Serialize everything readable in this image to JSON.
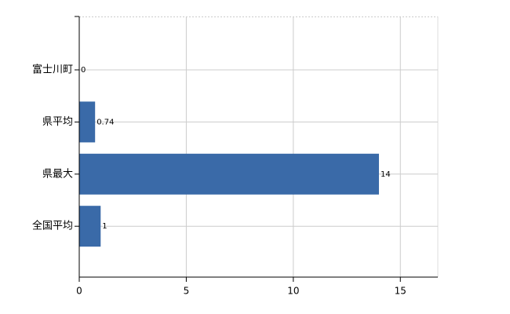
{
  "chart_data": {
    "type": "bar",
    "orientation": "horizontal",
    "categories": [
      "富士川町",
      "県平均",
      "県最大",
      "全国平均"
    ],
    "values": [
      0,
      0.74,
      14,
      1
    ],
    "color": "#3a6aa8",
    "xlim": [
      0,
      16.75
    ],
    "xticks": [
      0,
      5,
      10,
      15
    ],
    "grid": true
  }
}
